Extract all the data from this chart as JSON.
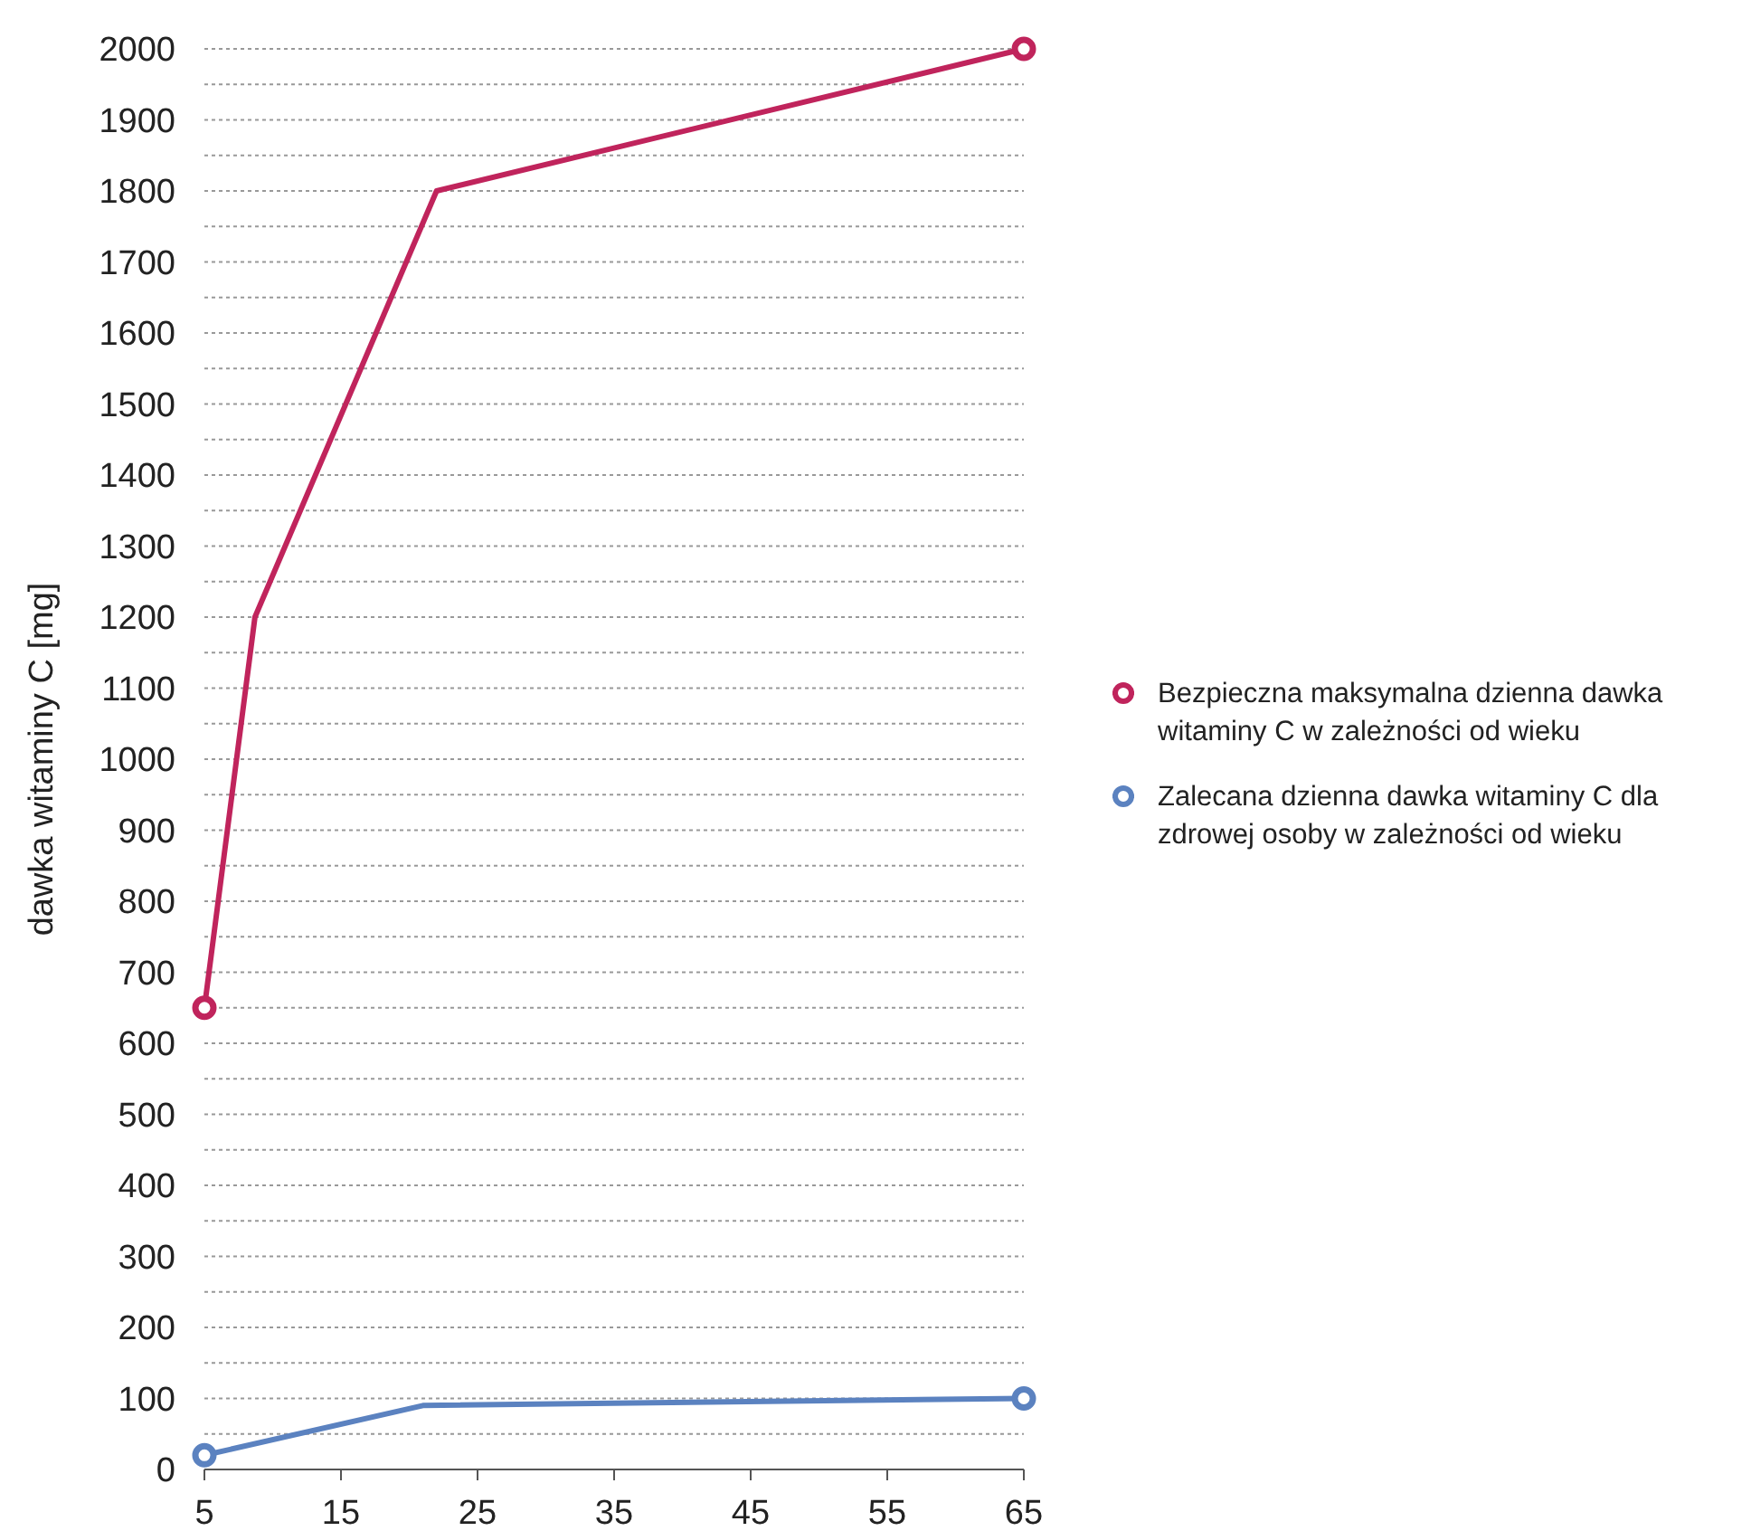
{
  "chart_data": {
    "type": "line",
    "ylabel": "dawka witaminy C [mg]",
    "xlim": [
      5,
      65
    ],
    "xticks": [
      5,
      15,
      25,
      35,
      45,
      55,
      65
    ],
    "ylim": [
      0,
      2000
    ],
    "yticks": [
      0,
      {
        "value": 50,
        "label": null
      },
      100,
      {
        "value": 150,
        "label": null
      },
      200,
      {
        "value": 250,
        "label": null
      },
      300,
      {
        "value": 350,
        "label": null
      },
      400,
      {
        "value": 450,
        "label": null
      },
      500,
      {
        "value": 550,
        "label": null
      },
      600,
      {
        "value": 650,
        "label": null
      },
      700,
      {
        "value": 750,
        "label": null
      },
      800,
      {
        "value": 850,
        "label": null
      },
      900,
      {
        "value": 950,
        "label": null
      },
      1000,
      {
        "value": 1050,
        "label": null
      },
      1100,
      {
        "value": 1150,
        "label": null
      },
      1200,
      {
        "value": 1250,
        "label": null
      },
      1300,
      {
        "value": 1350,
        "label": null
      },
      1400,
      {
        "value": 1450,
        "label": null
      },
      1500,
      {
        "value": 1550,
        "label": null
      },
      1600,
      {
        "value": 1650,
        "label": null
      },
      1700,
      {
        "value": 1750,
        "label": null
      },
      1800,
      {
        "value": 1850,
        "label": null
      },
      1900,
      {
        "value": 1950,
        "label": null
      },
      2000
    ],
    "grid": "y",
    "legend": "right",
    "marker": "circle",
    "series": [
      {
        "name": "Bezpieczna maksymalna dzienna dawka witaminy C w zależności od wieku",
        "color": "#c0245c",
        "x": [
          5,
          8.7,
          22,
          65
        ],
        "values": [
          650,
          1200,
          1800,
          2000
        ]
      },
      {
        "name": "Zalecana dzienna dawka witaminy C dla zdrowej osoby w zależności od wieku",
        "color": "#5b82c0",
        "x": [
          5,
          21,
          65
        ],
        "values": [
          20,
          90,
          100
        ]
      }
    ]
  }
}
